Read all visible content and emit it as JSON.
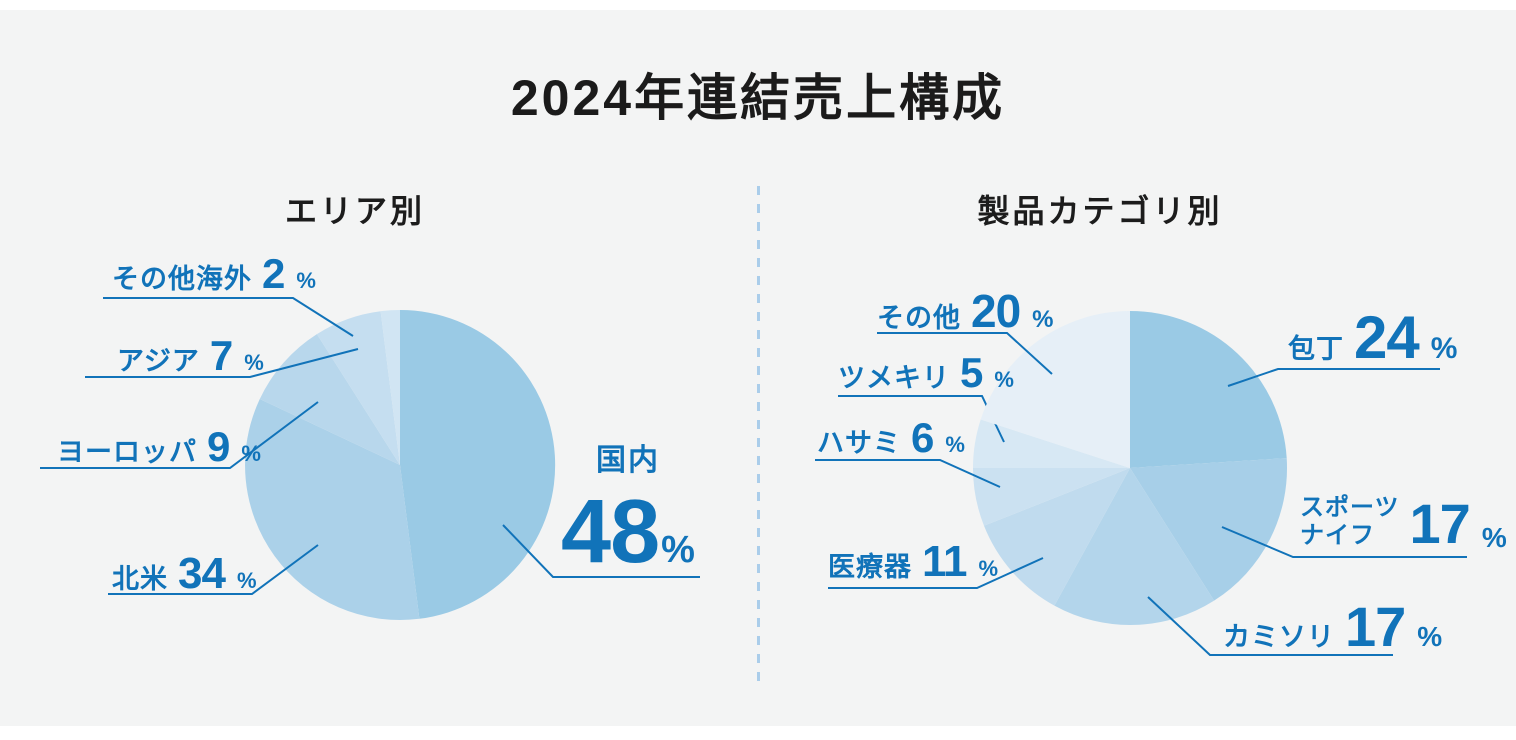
{
  "page": {
    "title": "2024年連結売上構成",
    "background_color": "#f3f4f4",
    "accent_color": "#1173b9",
    "divider_color": "#aacdea",
    "text_color": "#1b1b1b"
  },
  "chart_data": [
    {
      "type": "pie",
      "title": "エリア別",
      "unit": "%",
      "direction": "clockwise",
      "start_angle_deg": 0,
      "legend_position": "callout-labels",
      "slices": [
        {
          "label": "国内",
          "value": 48,
          "color": "#9acae5"
        },
        {
          "label": "北米",
          "value": 34,
          "color": "#abd1e9"
        },
        {
          "label": "ヨーロッパ",
          "value": 9,
          "color": "#b8d7ec"
        },
        {
          "label": "アジア",
          "value": 7,
          "color": "#c5def0"
        },
        {
          "label": "その他海外",
          "value": 2,
          "color": "#d1e5f3"
        }
      ]
    },
    {
      "type": "pie",
      "title": "製品カテゴリ別",
      "unit": "%",
      "direction": "clockwise",
      "start_angle_deg": 0,
      "legend_position": "callout-labels",
      "slices": [
        {
          "label": "包丁",
          "value": 24,
          "color": "#9acae5"
        },
        {
          "label": "スポーツナイフ",
          "value": 17,
          "color": "#a7cfe8"
        },
        {
          "label": "カミソリ",
          "value": 17,
          "color": "#b3d5eb"
        },
        {
          "label": "医療器",
          "value": 11,
          "color": "#c0dbee"
        },
        {
          "label": "ハサミ",
          "value": 6,
          "color": "#cbe1f1"
        },
        {
          "label": "ツメキリ",
          "value": 5,
          "color": "#d7e8f4"
        },
        {
          "label": "その他",
          "value": 20,
          "color": "#e6eff7"
        }
      ]
    }
  ]
}
